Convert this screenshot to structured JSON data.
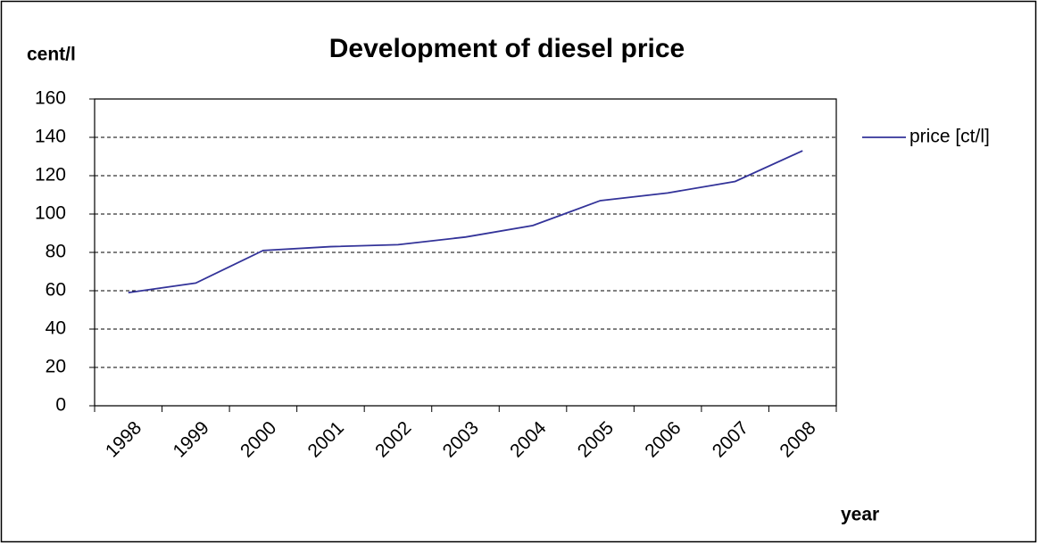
{
  "chart_data": {
    "type": "line",
    "title": "Development of diesel price",
    "y_label": "cent/l",
    "x_label": "year",
    "categories": [
      "1998",
      "1999",
      "2000",
      "2001",
      "2002",
      "2003",
      "2004",
      "2005",
      "2006",
      "2007",
      "2008"
    ],
    "series": [
      {
        "name": "price [ct/l]",
        "color": "#333399",
        "values": [
          59,
          64,
          81,
          83,
          84,
          88,
          94,
          107,
          111,
          117,
          133
        ]
      }
    ],
    "ylim": [
      0,
      160
    ],
    "yticks": [
      0,
      20,
      40,
      60,
      80,
      100,
      120,
      140,
      160
    ],
    "grid": true,
    "legend": "right"
  }
}
